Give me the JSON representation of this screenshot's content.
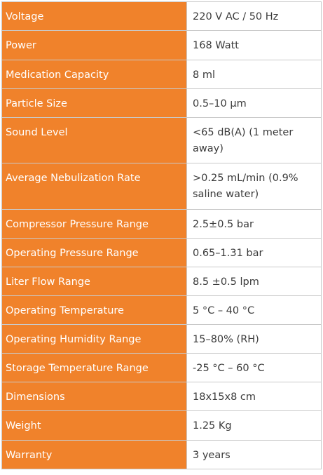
{
  "specs": [
    {
      "label": "Voltage",
      "value": "220 V AC / 50 Hz"
    },
    {
      "label": "Power",
      "value": "168 Watt"
    },
    {
      "label": "Medication Capacity",
      "value": "8 ml"
    },
    {
      "label": "Particle Size",
      "value": "0.5–10 μm"
    },
    {
      "label": "Sound Level",
      "value": "<65 dB(A) (1 meter away)"
    },
    {
      "label": "Average Nebulization Rate",
      "value": ">0.25 mL/min (0.9% saline water)"
    },
    {
      "label": "Compressor Pressure Range",
      "value": "2.5±0.5 bar"
    },
    {
      "label": "Operating Pressure Range",
      "value": "0.65–1.31 bar"
    },
    {
      "label": "Liter Flow Range",
      "value": "8.5 ±0.5 lpm"
    },
    {
      "label": "Operating Temperature",
      "value": "5 °C – 40 °C"
    },
    {
      "label": "Operating Humidity Range",
      "value": "15–80% (RH)"
    },
    {
      "label": "Storage Temperature Range",
      "value": "-25 °C – 60 °C"
    },
    {
      "label": "Dimensions",
      "value": "18x15x8 cm"
    },
    {
      "label": "Weight",
      "value": "1.25 Kg"
    },
    {
      "label": "Warranty",
      "value": "3 years"
    }
  ]
}
